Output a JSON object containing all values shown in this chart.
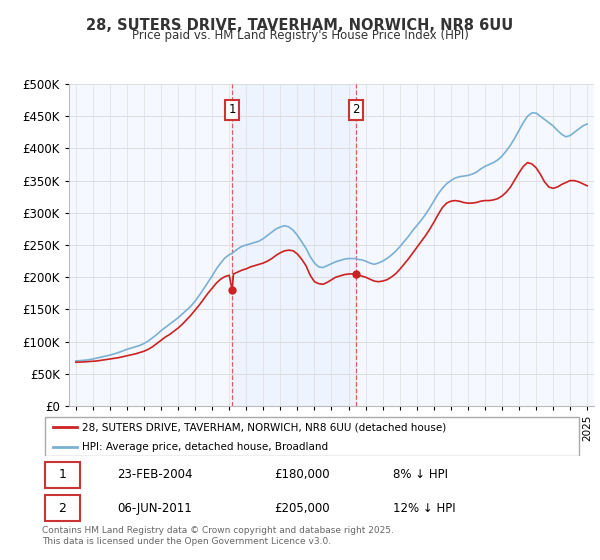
{
  "title_line1": "28, SUTERS DRIVE, TAVERHAM, NORWICH, NR8 6UU",
  "title_line2": "Price paid vs. HM Land Registry's House Price Index (HPI)",
  "background_color": "#ffffff",
  "grid_color": "#dddddd",
  "hpi_color": "#7ab0d4",
  "price_color": "#cc2222",
  "highlight_bg": "#ddeeff",
  "annotation1": {
    "x_year": 2004.17,
    "label": "1",
    "price": 180000,
    "date": "23-FEB-2004",
    "pct": "8% ↓ HPI"
  },
  "annotation2": {
    "x_year": 2011.44,
    "label": "2",
    "price": 205000,
    "date": "06-JUN-2011",
    "pct": "12% ↓ HPI"
  },
  "legend_line1": "28, SUTERS DRIVE, TAVERHAM, NORWICH, NR8 6UU (detached house)",
  "legend_line2": "HPI: Average price, detached house, Broadland",
  "footer": "Contains HM Land Registry data © Crown copyright and database right 2025.\nThis data is licensed under the Open Government Licence v3.0.",
  "ylim": [
    0,
    500000
  ],
  "yticks": [
    0,
    50000,
    100000,
    150000,
    200000,
    250000,
    300000,
    350000,
    400000,
    450000,
    500000
  ],
  "xlim_start": 1994.6,
  "xlim_end": 2025.4,
  "years_hpi": [
    1995,
    1995.25,
    1995.5,
    1995.75,
    1996,
    1996.25,
    1996.5,
    1996.75,
    1997,
    1997.25,
    1997.5,
    1997.75,
    1998,
    1998.25,
    1998.5,
    1998.75,
    1999,
    1999.25,
    1999.5,
    1999.75,
    2000,
    2000.25,
    2000.5,
    2000.75,
    2001,
    2001.25,
    2001.5,
    2001.75,
    2002,
    2002.25,
    2002.5,
    2002.75,
    2003,
    2003.25,
    2003.5,
    2003.75,
    2004,
    2004.17,
    2004.25,
    2004.5,
    2004.75,
    2005,
    2005.25,
    2005.5,
    2005.75,
    2006,
    2006.25,
    2006.5,
    2006.75,
    2007,
    2007.25,
    2007.5,
    2007.75,
    2008,
    2008.25,
    2008.5,
    2008.75,
    2009,
    2009.25,
    2009.5,
    2009.75,
    2010,
    2010.25,
    2010.5,
    2010.75,
    2011,
    2011.25,
    2011.44,
    2011.5,
    2011.75,
    2012,
    2012.25,
    2012.5,
    2012.75,
    2013,
    2013.25,
    2013.5,
    2013.75,
    2014,
    2014.25,
    2014.5,
    2014.75,
    2015,
    2015.25,
    2015.5,
    2015.75,
    2016,
    2016.25,
    2016.5,
    2016.75,
    2017,
    2017.25,
    2017.5,
    2017.75,
    2018,
    2018.25,
    2018.5,
    2018.75,
    2019,
    2019.25,
    2019.5,
    2019.75,
    2020,
    2020.25,
    2020.5,
    2020.75,
    2021,
    2021.25,
    2021.5,
    2021.75,
    2022,
    2022.25,
    2022.5,
    2022.75,
    2023,
    2023.25,
    2023.5,
    2023.75,
    2024,
    2024.25,
    2024.5,
    2024.75,
    2025
  ],
  "hpi_values": [
    70000,
    70500,
    71000,
    71800,
    73000,
    74500,
    76000,
    77500,
    79000,
    81000,
    83000,
    85500,
    88000,
    90000,
    92000,
    94000,
    97000,
    101000,
    106000,
    111000,
    117000,
    122000,
    127000,
    132000,
    137000,
    143000,
    149000,
    155000,
    163000,
    172000,
    182000,
    192000,
    202000,
    213000,
    222000,
    230000,
    235000,
    237000,
    239000,
    244000,
    248000,
    250000,
    252000,
    254000,
    256000,
    260000,
    265000,
    270000,
    275000,
    278000,
    280000,
    278000,
    273000,
    265000,
    255000,
    245000,
    232000,
    222000,
    216000,
    215000,
    218000,
    221000,
    224000,
    226000,
    228000,
    229000,
    229000,
    229000,
    228000,
    227000,
    225000,
    222000,
    220000,
    222000,
    225000,
    229000,
    234000,
    240000,
    247000,
    255000,
    263000,
    272000,
    280000,
    288000,
    297000,
    307000,
    318000,
    329000,
    338000,
    345000,
    350000,
    354000,
    356000,
    357000,
    358000,
    360000,
    363000,
    368000,
    372000,
    375000,
    378000,
    382000,
    388000,
    396000,
    405000,
    416000,
    428000,
    440000,
    450000,
    455000,
    455000,
    450000,
    445000,
    440000,
    435000,
    428000,
    422000,
    418000,
    420000,
    425000,
    430000,
    435000,
    438000
  ],
  "red_values": [
    68000,
    68200,
    68500,
    69000,
    69500,
    70000,
    71000,
    72000,
    73000,
    74000,
    75000,
    76500,
    78000,
    79500,
    81000,
    83000,
    85000,
    88000,
    92000,
    97000,
    102000,
    107000,
    111000,
    116000,
    121000,
    127000,
    134000,
    141000,
    149000,
    157000,
    166000,
    175000,
    183000,
    191000,
    197000,
    201000,
    203000,
    180000,
    205000,
    208000,
    211000,
    213000,
    216000,
    218000,
    220000,
    222000,
    225000,
    229000,
    234000,
    238000,
    241000,
    242000,
    241000,
    236000,
    228000,
    218000,
    203000,
    193000,
    190000,
    189000,
    192000,
    196000,
    200000,
    202000,
    204000,
    205000,
    205000,
    205000,
    204000,
    202000,
    200000,
    197000,
    194000,
    193000,
    194000,
    196000,
    200000,
    205000,
    212000,
    220000,
    228000,
    237000,
    246000,
    255000,
    264000,
    274000,
    285000,
    297000,
    308000,
    315000,
    318000,
    319000,
    318000,
    316000,
    315000,
    315000,
    316000,
    318000,
    319000,
    319000,
    320000,
    322000,
    326000,
    332000,
    340000,
    351000,
    362000,
    372000,
    378000,
    376000,
    370000,
    360000,
    348000,
    340000,
    338000,
    340000,
    344000,
    347000,
    350000,
    350000,
    348000,
    345000,
    342000
  ]
}
